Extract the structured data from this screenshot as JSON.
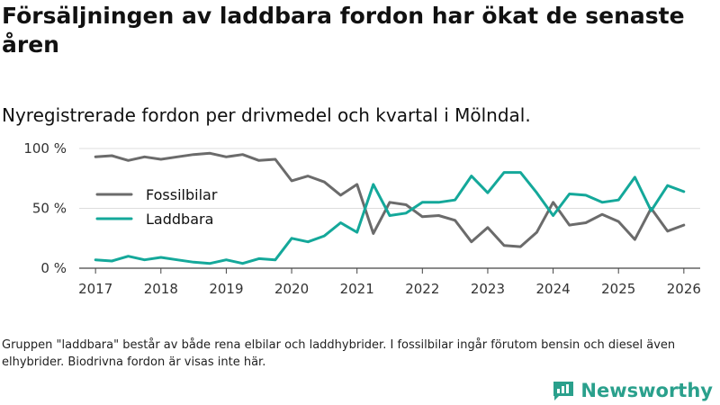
{
  "title": "Försäljningen av laddbara fordon har ökat de senaste åren",
  "subtitle": "Nyregistrerade fordon per drivmedel och kvartal i Mölndal.",
  "footnote": "Gruppen \"laddbara\" består av både rena elbilar och laddhybrider. I fossilbilar ingår förutom bensin och diesel även elhybrider. Biodrivna fordon är visas inte här.",
  "brand": {
    "name": "Newsworthy",
    "icon": "newsworthy-logo-icon",
    "color": "#2aa08c"
  },
  "chart_data": {
    "type": "line",
    "title": "",
    "xlabel": "",
    "ylabel": "",
    "xlim": [
      2016.75,
      2026.25
    ],
    "ylim": [
      0,
      100
    ],
    "x": [
      2017.0,
      2017.25,
      2017.5,
      2017.75,
      2018.0,
      2018.25,
      2018.5,
      2018.75,
      2019.0,
      2019.25,
      2019.5,
      2019.75,
      2020.0,
      2020.25,
      2020.5,
      2020.75,
      2021.0,
      2021.25,
      2021.5,
      2021.75,
      2022.0,
      2022.25,
      2022.5,
      2022.75,
      2023.0,
      2023.25,
      2023.5,
      2023.75,
      2024.0,
      2024.25,
      2024.5,
      2024.75,
      2025.0,
      2025.25,
      2025.5,
      2025.75,
      2026.0
    ],
    "x_ticks": [
      2017,
      2018,
      2019,
      2020,
      2021,
      2022,
      2023,
      2024,
      2025,
      2026
    ],
    "x_tick_labels": [
      "2017",
      "2018",
      "2019",
      "2020",
      "2021",
      "2022",
      "2023",
      "2024",
      "2025",
      "2026"
    ],
    "y_ticks": [
      0,
      50,
      100
    ],
    "y_tick_labels": [
      "0 %",
      "50 %",
      "100 %"
    ],
    "grid": true,
    "legend_position": "left-middle",
    "series": [
      {
        "name": "Fossilbilar",
        "color": "#6b6b6b",
        "values": [
          93,
          94,
          90,
          93,
          91,
          93,
          95,
          96,
          93,
          95,
          90,
          91,
          73,
          77,
          72,
          61,
          70,
          29,
          55,
          53,
          43,
          44,
          40,
          22,
          34,
          19,
          18,
          30,
          55,
          36,
          38,
          45,
          39,
          24,
          50,
          31,
          36
        ]
      },
      {
        "name": "Laddbara",
        "color": "#14a89a",
        "values": [
          7,
          6,
          10,
          7,
          9,
          7,
          5,
          4,
          7,
          4,
          8,
          7,
          25,
          22,
          27,
          38,
          30,
          70,
          44,
          46,
          55,
          55,
          57,
          77,
          63,
          80,
          80,
          63,
          44,
          62,
          61,
          55,
          57,
          76,
          48,
          69,
          64
        ]
      }
    ]
  }
}
